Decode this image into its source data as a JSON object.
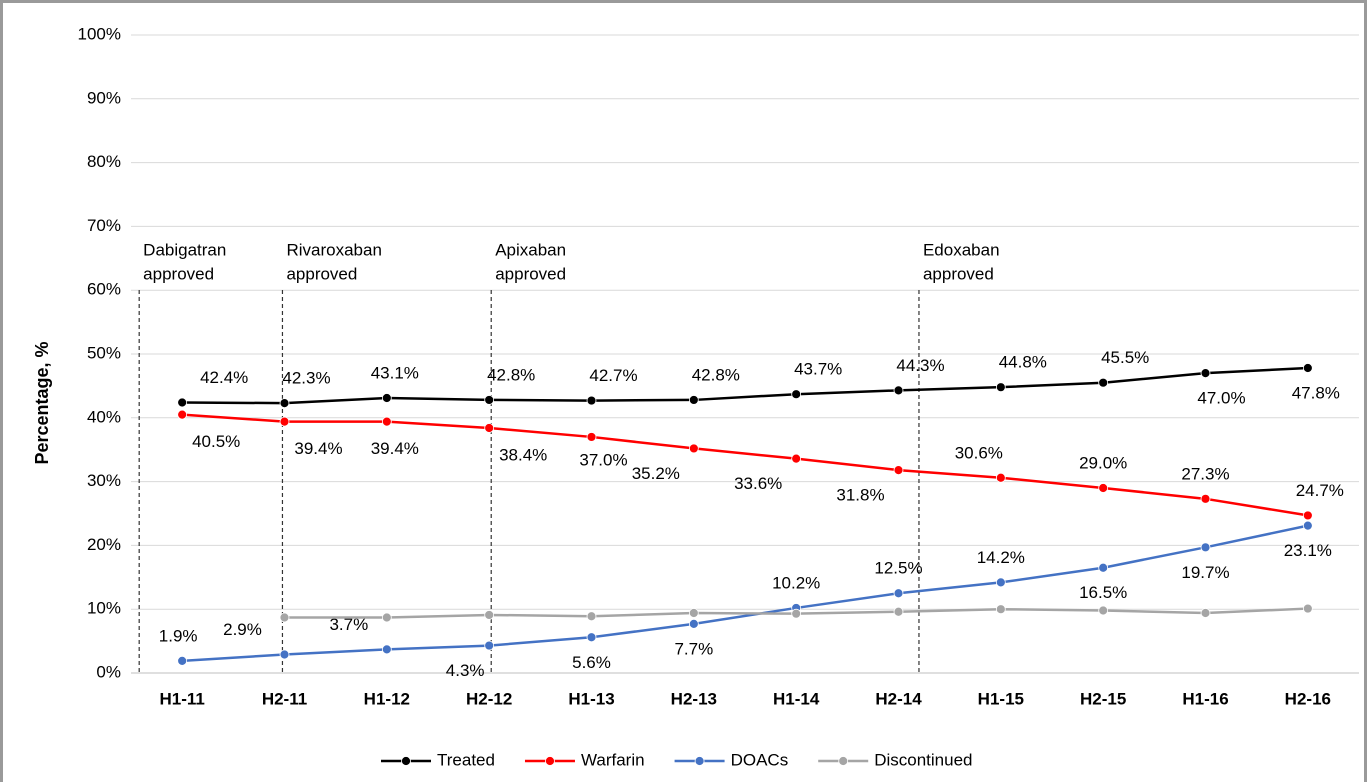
{
  "chart_data": {
    "type": "line",
    "y_label": "Percentage, %",
    "categories": [
      "H1-11",
      "H2-11",
      "H1-12",
      "H2-12",
      "H1-13",
      "H2-13",
      "H1-14",
      "H2-14",
      "H1-15",
      "H2-15",
      "H1-16",
      "H2-16"
    ],
    "ylim": [
      0,
      100
    ],
    "yticks": [
      {
        "value": 0,
        "label": "0%"
      },
      {
        "value": 10,
        "label": "10%"
      },
      {
        "value": 20,
        "label": "20%"
      },
      {
        "value": 30,
        "label": "30%"
      },
      {
        "value": 40,
        "label": "40%"
      },
      {
        "value": 50,
        "label": "50%"
      },
      {
        "value": 60,
        "label": "60%"
      },
      {
        "value": 70,
        "label": "70%"
      },
      {
        "value": 80,
        "label": "80%"
      },
      {
        "value": 90,
        "label": "90%"
      },
      {
        "value": 100,
        "label": "100%"
      }
    ],
    "grid": true,
    "legend": "bottom",
    "series": [
      {
        "name": "Treated",
        "color": "#000000",
        "values": [
          42.4,
          42.3,
          43.1,
          42.8,
          42.7,
          42.8,
          43.7,
          44.3,
          44.8,
          45.5,
          47.0,
          47.8
        ],
        "value_labels": [
          "42.4%",
          "42.3%",
          "43.1%",
          "42.8%",
          "42.7%",
          "42.8%",
          "43.7%",
          "44.3%",
          "44.8%",
          "45.5%",
          "47.0%",
          "47.8%"
        ]
      },
      {
        "name": "Warfarin",
        "color": "#ff0000",
        "values": [
          40.5,
          39.4,
          39.4,
          38.4,
          37.0,
          35.2,
          33.6,
          31.8,
          30.6,
          29.0,
          27.3,
          24.7
        ],
        "value_labels": [
          "40.5%",
          "39.4%",
          "39.4%",
          "38.4%",
          "37.0%",
          "35.2%",
          "33.6%",
          "31.8%",
          "30.6%",
          "29.0%",
          "27.3%",
          "24.7%"
        ]
      },
      {
        "name": "DOACs",
        "color": "#4472c4",
        "values": [
          1.9,
          2.9,
          3.7,
          4.3,
          5.6,
          7.7,
          10.2,
          12.5,
          14.2,
          16.5,
          19.7,
          23.1
        ],
        "value_labels": [
          "1.9%",
          "2.9%",
          "3.7%",
          "4.3%",
          "5.6%",
          "7.7%",
          "10.2%",
          "12.5%",
          "14.2%",
          "16.5%",
          "19.7%",
          "23.1%"
        ]
      },
      {
        "name": "Discontinued",
        "color": "#a5a5a5",
        "values": [
          null,
          8.7,
          8.7,
          9.1,
          8.9,
          9.4,
          9.3,
          9.6,
          10.0,
          9.8,
          9.4,
          10.1
        ]
      }
    ],
    "annotations": [
      {
        "lines": [
          "Dabigatran",
          "approved"
        ],
        "category": "H1-11"
      },
      {
        "lines": [
          "Rivaroxaban",
          "approved"
        ],
        "category": "H2-11"
      },
      {
        "lines": [
          "Apixaban",
          "approved"
        ],
        "category": "H2-12"
      },
      {
        "lines": [
          "Edoxaban",
          "approved"
        ],
        "category": "H2-14"
      }
    ]
  }
}
